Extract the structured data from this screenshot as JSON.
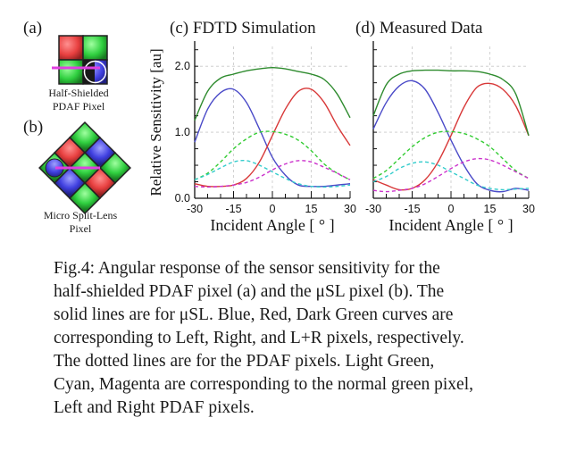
{
  "panels": {
    "a": {
      "letter": "(a)",
      "label_line1": "Half-Shielded",
      "label_line2": "PDAF Pixel"
    },
    "b": {
      "letter": "(b)",
      "label_line1": "Micro Split-Lens",
      "label_line2": "Pixel"
    },
    "c": {
      "title": "(c) FDTD Simulation"
    },
    "d": {
      "title": "(d) Measured Data"
    }
  },
  "colors": {
    "blue": "#4a4ac8",
    "red": "#d83838",
    "dark_green": "#2e8b2e",
    "light_green": "#33cc33",
    "cyan": "#33cccc",
    "magenta": "#cc33cc",
    "pixel_red": "#e84040",
    "pixel_green": "#30d040",
    "pixel_blue": "#4040e0",
    "pixel_dark": "#1a1a1a"
  },
  "chart_data": [
    {
      "type": "line",
      "title": "(c) FDTD Simulation",
      "xlabel": "Incident Angle [ ° ]",
      "ylabel": "Relative Sensitivity [au]",
      "xlim": [
        -30,
        30
      ],
      "ylim": [
        0,
        2.3
      ],
      "x_ticks": [
        -30,
        -15,
        0,
        15,
        30
      ],
      "y_ticks": [
        0.0,
        1.0,
        2.0
      ],
      "x_tick_labels": [
        "-30",
        "-15",
        "0",
        "15",
        "30"
      ],
      "y_tick_labels": [
        "0.0",
        "1.0",
        "2.0"
      ],
      "grid": true,
      "x": [
        -30,
        -25,
        -20,
        -15,
        -10,
        -5,
        0,
        5,
        10,
        15,
        20,
        25,
        30
      ],
      "series": [
        {
          "name": "Left (μSL)",
          "color": "blue",
          "style": "solid",
          "values": [
            0.85,
            1.35,
            1.6,
            1.65,
            1.45,
            1.05,
            0.62,
            0.35,
            0.2,
            0.18,
            0.18,
            0.2,
            0.22
          ]
        },
        {
          "name": "Right (μSL)",
          "color": "red",
          "style": "solid",
          "values": [
            0.22,
            0.18,
            0.18,
            0.2,
            0.3,
            0.55,
            0.95,
            1.35,
            1.62,
            1.65,
            1.45,
            1.1,
            0.8
          ]
        },
        {
          "name": "L+R (μSL)",
          "color": "dark_green",
          "style": "solid",
          "values": [
            1.18,
            1.62,
            1.82,
            1.88,
            1.93,
            1.96,
            1.98,
            1.96,
            1.92,
            1.88,
            1.8,
            1.58,
            1.22
          ]
        },
        {
          "name": "Normal green pixel",
          "color": "light_green",
          "style": "dashed",
          "values": [
            0.28,
            0.38,
            0.55,
            0.75,
            0.9,
            1.0,
            1.01,
            0.97,
            0.88,
            0.72,
            0.52,
            0.38,
            0.28
          ]
        },
        {
          "name": "Left PDAF",
          "color": "cyan",
          "style": "dashed",
          "values": [
            0.28,
            0.36,
            0.46,
            0.55,
            0.57,
            0.5,
            0.4,
            0.3,
            0.22,
            0.18,
            0.17,
            0.18,
            0.2
          ]
        },
        {
          "name": "Right PDAF",
          "color": "magenta",
          "style": "dashed",
          "values": [
            0.18,
            0.17,
            0.18,
            0.2,
            0.24,
            0.32,
            0.43,
            0.52,
            0.57,
            0.55,
            0.47,
            0.38,
            0.28
          ]
        }
      ]
    },
    {
      "type": "line",
      "title": "(d) Measured Data",
      "xlabel": "Incident Angle [ ° ]",
      "ylabel": "",
      "xlim": [
        -30,
        30
      ],
      "ylim": [
        0,
        2.3
      ],
      "x_ticks": [
        -30,
        -15,
        0,
        15,
        30
      ],
      "y_ticks": [
        0.0,
        1.0,
        2.0
      ],
      "x_tick_labels": [
        "-30",
        "-15",
        "0",
        "15",
        "30"
      ],
      "y_tick_labels": [],
      "grid": true,
      "x": [
        -30,
        -25,
        -20,
        -15,
        -10,
        -5,
        0,
        5,
        10,
        15,
        20,
        25,
        30
      ],
      "series": [
        {
          "name": "Left (μSL)",
          "color": "blue",
          "style": "solid",
          "values": [
            1.05,
            1.45,
            1.7,
            1.78,
            1.65,
            1.3,
            0.88,
            0.5,
            0.22,
            0.12,
            0.1,
            0.15,
            0.12
          ]
        },
        {
          "name": "Right (μSL)",
          "color": "red",
          "style": "solid",
          "values": [
            0.28,
            0.2,
            0.13,
            0.15,
            0.28,
            0.55,
            0.95,
            1.38,
            1.68,
            1.74,
            1.65,
            1.4,
            0.95
          ]
        },
        {
          "name": "L+R (μSL)",
          "color": "dark_green",
          "style": "solid",
          "values": [
            1.25,
            1.72,
            1.88,
            1.93,
            1.94,
            1.94,
            1.93,
            1.93,
            1.92,
            1.88,
            1.8,
            1.58,
            0.95
          ]
        },
        {
          "name": "Normal green pixel",
          "color": "light_green",
          "style": "dashed",
          "values": [
            0.3,
            0.42,
            0.6,
            0.78,
            0.92,
            1.0,
            1.01,
            0.98,
            0.9,
            0.78,
            0.6,
            0.42,
            0.3
          ]
        },
        {
          "name": "Left PDAF",
          "color": "cyan",
          "style": "dashed",
          "values": [
            0.25,
            0.33,
            0.45,
            0.53,
            0.55,
            0.5,
            0.4,
            0.3,
            0.2,
            0.15,
            0.13,
            0.14,
            0.15
          ]
        },
        {
          "name": "Right PDAF",
          "color": "magenta",
          "style": "dashed",
          "values": [
            0.12,
            0.1,
            0.12,
            0.15,
            0.22,
            0.33,
            0.45,
            0.55,
            0.6,
            0.58,
            0.5,
            0.4,
            0.3
          ]
        }
      ]
    }
  ],
  "caption_lines": [
    "Fig.4: Angular response of the sensor sensitivity for the",
    "half-shielded PDAF pixel (a) and the μSL pixel (b). The",
    "solid lines are for μSL. Blue, Red, Dark Green curves are",
    "corresponding to Left, Right, and L+R pixels, respectively.",
    "The dotted lines are for the PDAF pixels. Light Green,",
    "Cyan, Magenta are corresponding to the normal green pixel,",
    "Left and Right PDAF pixels."
  ]
}
